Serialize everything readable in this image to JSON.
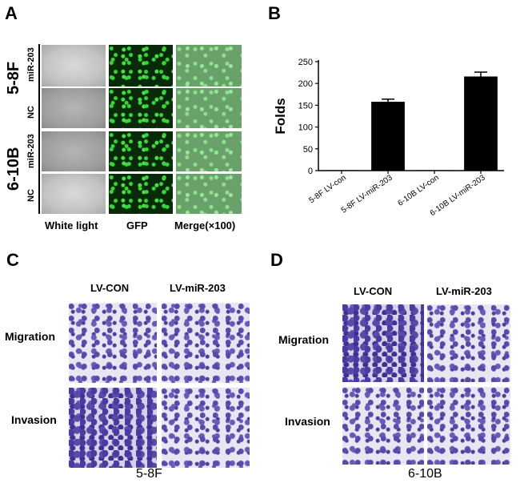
{
  "panel_a": {
    "letter": "A",
    "group_labels": [
      "5-8F",
      "6-10B"
    ],
    "row_labels": [
      "miR-203",
      "NC",
      "miR-203",
      "NC"
    ],
    "column_labels": [
      "White light",
      "GFP",
      "Merge(×100)"
    ]
  },
  "panel_b": {
    "letter": "B"
  },
  "panel_c": {
    "letter": "C",
    "column_labels": [
      "LV-CON",
      "LV-miR-203"
    ],
    "row_labels": [
      "Migration",
      "Invasion"
    ],
    "caption": "5-8F"
  },
  "panel_d": {
    "letter": "D",
    "column_labels": [
      "LV-CON",
      "LV-miR-203"
    ],
    "row_labels": [
      "Migration",
      "Invasion"
    ],
    "caption": "6-10B"
  },
  "chart_data": {
    "type": "bar",
    "categories": [
      "5-8F LV-con",
      "5-8F LV-miR-203",
      "6-10B LV-con",
      "6-10B LV-miR-203"
    ],
    "values": [
      1,
      158,
      1,
      216
    ],
    "errors": [
      0,
      6,
      0,
      10
    ],
    "ylabel": "Folds",
    "xlabel": "",
    "ylim": [
      0,
      250
    ],
    "yticks": [
      0,
      50,
      100,
      150,
      200,
      250
    ],
    "grid": false,
    "bar_color": "#000000"
  }
}
